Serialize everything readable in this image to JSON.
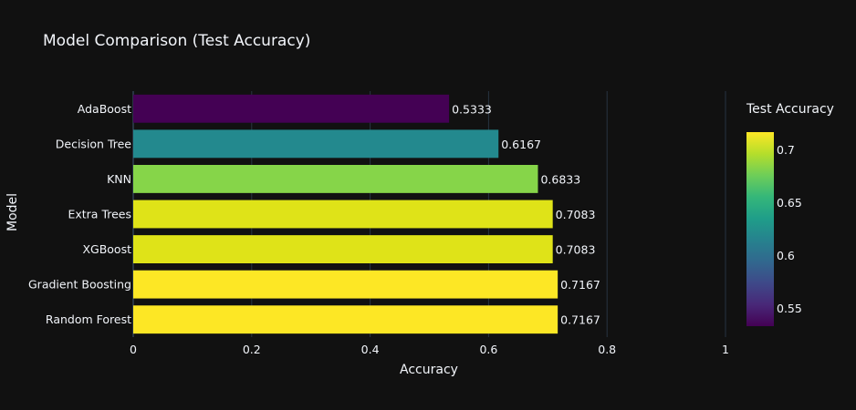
{
  "chart_data": {
    "type": "bar",
    "orientation": "horizontal",
    "title": "Model Comparison (Test Accuracy)",
    "xlabel": "Accuracy",
    "ylabel": "Model",
    "xlim": [
      0,
      1
    ],
    "x_ticks": [
      0,
      0.2,
      0.4,
      0.6,
      0.8,
      1
    ],
    "x_tick_labels": [
      "0",
      "0.2",
      "0.4",
      "0.6",
      "0.8",
      "1"
    ],
    "grid": true,
    "categories": [
      "AdaBoost",
      "Decision Tree",
      "KNN",
      "Extra Trees",
      "XGBoost",
      "Gradient Boosting",
      "Random Forest"
    ],
    "values": [
      0.5333,
      0.6167,
      0.6833,
      0.7083,
      0.7083,
      0.7167,
      0.7167
    ],
    "data_labels": [
      "0.5333",
      "0.6167",
      "0.6833",
      "0.7083",
      "0.7083",
      "0.7167",
      "0.7167"
    ],
    "bar_colors": [
      "#440154",
      "#23898e",
      "#86d549",
      "#dfe318",
      "#dfe318",
      "#fde725",
      "#fde725"
    ],
    "colorbar": {
      "title": "Test Accuracy",
      "colorscale": "viridis",
      "range": [
        0.5333,
        0.7167
      ],
      "ticks": [
        0.55,
        0.6,
        0.65,
        0.7
      ],
      "tick_labels": [
        "0.55",
        "0.6",
        "0.65",
        "0.7"
      ],
      "placement": "right"
    }
  },
  "theme": {
    "background": "#111111",
    "plot_background": "#111111",
    "grid_color": "#283442",
    "text_color": "#f2f5fa"
  }
}
